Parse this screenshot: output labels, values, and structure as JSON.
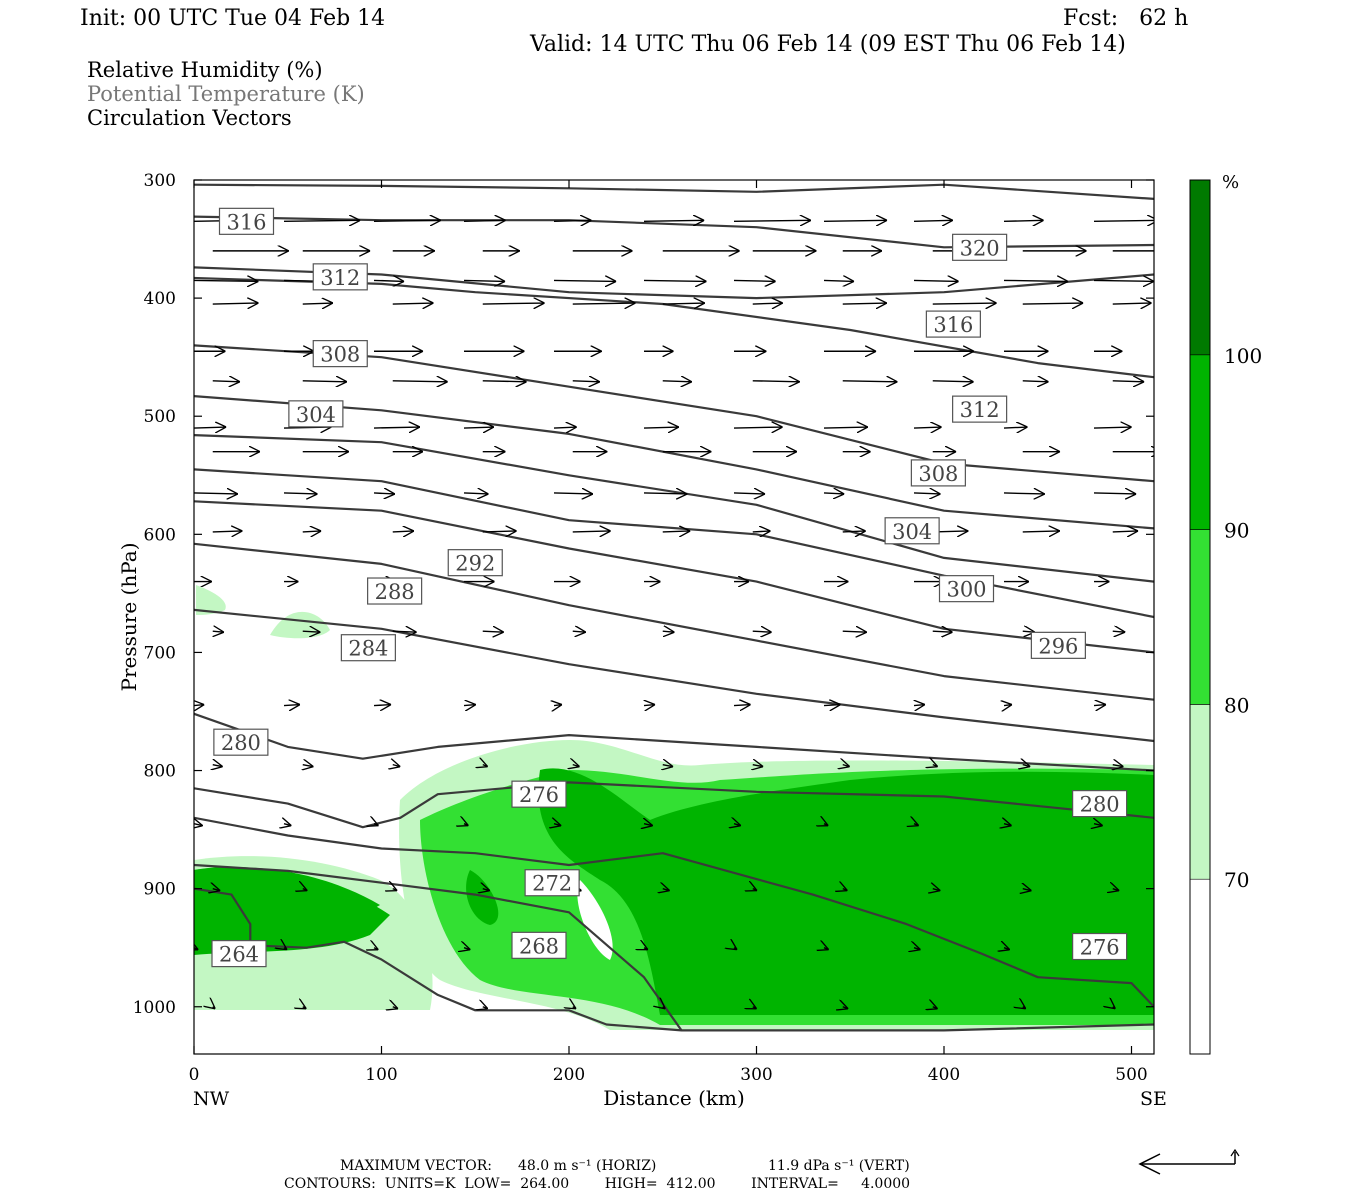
{
  "header": {
    "init": "Init: 00 UTC Tue 04 Feb 14",
    "fcst": "Fcst:   62 h",
    "valid": "Valid: 14 UTC Thu 06 Feb 14 (09 EST Thu 06 Feb 14)"
  },
  "legend": {
    "line1": "Relative Humidity (%)",
    "line2": "Potential Temperature (K)",
    "line3": "Circulation Vectors"
  },
  "chart_data": {
    "type": "cross-section",
    "x_axis": {
      "label": "Distance (km)",
      "range": [
        0,
        512
      ],
      "ticks": [
        0,
        100,
        200,
        300,
        400,
        500
      ],
      "left_end": "NW",
      "right_end": "SE"
    },
    "y_axis": {
      "label": "Pressure (hPa)",
      "range": [
        300,
        1040
      ],
      "inverted": true,
      "ticks": [
        300,
        400,
        500,
        600,
        700,
        800,
        900,
        1000
      ]
    },
    "colorbar": {
      "unit": "%",
      "levels": [
        70,
        80,
        90,
        100
      ],
      "colors": [
        "#ffffff",
        "#c3f7c3",
        "#33e033",
        "#00b400",
        "#007a00"
      ]
    },
    "isentrope_labels": [
      {
        "value": "316",
        "x": 28,
        "p": 335
      },
      {
        "value": "312",
        "x": 78,
        "p": 382
      },
      {
        "value": "308",
        "x": 78,
        "p": 447
      },
      {
        "value": "304",
        "x": 65,
        "p": 498
      },
      {
        "value": "292",
        "x": 150,
        "p": 624
      },
      {
        "value": "288",
        "x": 107,
        "p": 648
      },
      {
        "value": "284",
        "x": 93,
        "p": 696
      },
      {
        "value": "280",
        "x": 25,
        "p": 776
      },
      {
        "value": "276",
        "x": 184,
        "p": 820
      },
      {
        "value": "272",
        "x": 191,
        "p": 895
      },
      {
        "value": "268",
        "x": 184,
        "p": 948
      },
      {
        "value": "264",
        "x": 24,
        "p": 955
      },
      {
        "value": "320",
        "x": 419,
        "p": 357
      },
      {
        "value": "316",
        "x": 405,
        "p": 422
      },
      {
        "value": "312",
        "x": 419,
        "p": 494
      },
      {
        "value": "308",
        "x": 397,
        "p": 548
      },
      {
        "value": "304",
        "x": 383,
        "p": 597
      },
      {
        "value": "300",
        "x": 412,
        "p": 646
      },
      {
        "value": "296",
        "x": 461,
        "p": 694
      },
      {
        "value": "280",
        "x": 483,
        "p": 828
      },
      {
        "value": "276",
        "x": 483,
        "p": 949
      }
    ],
    "isentropes": [
      [
        [
          0,
          304
        ],
        [
          100,
          305
        ],
        [
          200,
          307
        ],
        [
          300,
          310
        ],
        [
          400,
          304
        ],
        [
          512,
          316
        ]
      ],
      [
        [
          0,
          331
        ],
        [
          100,
          334
        ],
        [
          200,
          334
        ],
        [
          300,
          340
        ],
        [
          400,
          357
        ],
        [
          512,
          355
        ]
      ],
      [
        [
          0,
          374
        ],
        [
          100,
          380
        ],
        [
          200,
          395
        ],
        [
          300,
          400
        ],
        [
          400,
          395
        ],
        [
          512,
          380
        ]
      ],
      [
        [
          0,
          383
        ],
        [
          100,
          388
        ],
        [
          150,
          395
        ],
        [
          250,
          405
        ],
        [
          350,
          427
        ],
        [
          450,
          455
        ],
        [
          512,
          467
        ]
      ],
      [
        [
          0,
          440
        ],
        [
          100,
          450
        ],
        [
          200,
          475
        ],
        [
          300,
          500
        ],
        [
          400,
          540
        ],
        [
          512,
          555
        ]
      ],
      [
        [
          0,
          483
        ],
        [
          100,
          495
        ],
        [
          200,
          515
        ],
        [
          300,
          545
        ],
        [
          400,
          580
        ],
        [
          512,
          595
        ]
      ],
      [
        [
          0,
          516
        ],
        [
          100,
          522
        ],
        [
          200,
          550
        ],
        [
          300,
          575
        ],
        [
          400,
          620
        ],
        [
          512,
          640
        ]
      ],
      [
        [
          0,
          545
        ],
        [
          100,
          555
        ],
        [
          200,
          588
        ],
        [
          300,
          600
        ],
        [
          400,
          635
        ],
        [
          512,
          670
        ]
      ],
      [
        [
          0,
          572
        ],
        [
          100,
          580
        ],
        [
          200,
          612
        ],
        [
          300,
          640
        ],
        [
          400,
          680
        ],
        [
          512,
          700
        ]
      ],
      [
        [
          0,
          608
        ],
        [
          100,
          625
        ],
        [
          200,
          660
        ],
        [
          300,
          690
        ],
        [
          400,
          720
        ],
        [
          512,
          740
        ]
      ],
      [
        [
          0,
          664
        ],
        [
          100,
          680
        ],
        [
          200,
          710
        ],
        [
          300,
          735
        ],
        [
          400,
          755
        ],
        [
          512,
          775
        ]
      ],
      [
        [
          0,
          752
        ],
        [
          50,
          780
        ],
        [
          90,
          790
        ],
        [
          130,
          780
        ],
        [
          200,
          770
        ],
        [
          300,
          780
        ],
        [
          400,
          790
        ],
        [
          512,
          800
        ]
      ],
      [
        [
          0,
          815
        ],
        [
          50,
          828
        ],
        [
          90,
          848
        ],
        [
          110,
          840
        ],
        [
          130,
          820
        ],
        [
          200,
          810
        ],
        [
          300,
          818
        ],
        [
          400,
          822
        ],
        [
          512,
          840
        ]
      ],
      [
        [
          0,
          840
        ],
        [
          50,
          855
        ],
        [
          100,
          866
        ],
        [
          150,
          870
        ],
        [
          200,
          880
        ],
        [
          250,
          870
        ],
        [
          330,
          905
        ],
        [
          380,
          930
        ],
        [
          420,
          955
        ],
        [
          450,
          975
        ],
        [
          500,
          980
        ],
        [
          512,
          1000
        ]
      ],
      [
        [
          0,
          880
        ],
        [
          50,
          885
        ],
        [
          100,
          895
        ],
        [
          150,
          905
        ],
        [
          200,
          920
        ],
        [
          240,
          975
        ],
        [
          260,
          1020
        ]
      ],
      [
        [
          0,
          900
        ],
        [
          20,
          905
        ],
        [
          30,
          930
        ],
        [
          30,
          948
        ],
        [
          60,
          950
        ],
        [
          80,
          945
        ],
        [
          100,
          960
        ],
        [
          130,
          990
        ],
        [
          150,
          1003
        ],
        [
          200,
          1003
        ],
        [
          220,
          1015
        ],
        [
          260,
          1020
        ],
        [
          400,
          1020
        ],
        [
          512,
          1015
        ]
      ]
    ]
  },
  "footer": {
    "max_vector_label": "MAXIMUM VECTOR:",
    "max_vector_horiz": "48.0 m s⁻¹ (HORIZ)",
    "max_vector_vert": "11.9 dPa s⁻¹ (VERT)",
    "contours": "CONTOURS:  UNITS=K  LOW=  264.00        HIGH=  412.00        INTERVAL=     4.0000"
  }
}
